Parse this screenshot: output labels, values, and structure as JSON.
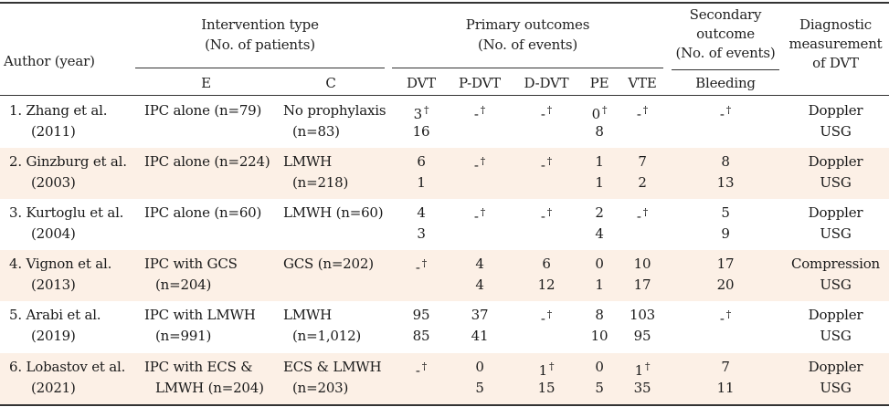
{
  "header": {
    "author": "Author (year)",
    "intervention_l1": "Intervention type",
    "intervention_l2": "(No. of patients)",
    "primary_l1": "Primary outcomes",
    "primary_l2": "(No. of events)",
    "secondary_l1": "Secondary",
    "secondary_l2": "outcome",
    "secondary_l3": "(No. of events)",
    "diag_l1": "Diagnostic",
    "diag_l2": "measurement",
    "diag_l3": "of DVT",
    "col_e": "E",
    "col_c": "C",
    "col_dvt": "DVT",
    "col_pdvt": "P-DVT",
    "col_ddvt": "D-DVT",
    "col_pe": "PE",
    "col_vte": "VTE",
    "col_bleeding": "Bleeding"
  },
  "dagger": "†",
  "rows": [
    {
      "author": [
        "1. Zhang et al.",
        "(2011)"
      ],
      "e": [
        "IPC alone (n=79)",
        ""
      ],
      "c": [
        "No prophylaxis",
        "(n=83)"
      ],
      "dvt": [
        "3",
        "16"
      ],
      "dvt_dag": true,
      "pdvt": [
        "-",
        ""
      ],
      "pdvt_dag": true,
      "ddvt": [
        "-",
        ""
      ],
      "ddvt_dag": true,
      "pe": [
        "0",
        "8"
      ],
      "pe_dag": true,
      "vte": [
        "-",
        ""
      ],
      "vte_dag": true,
      "bleed": [
        "-",
        ""
      ],
      "bleed_dag": true,
      "diag": [
        "Doppler",
        "USG"
      ]
    },
    {
      "author": [
        "2. Ginzburg et al.",
        "(2003)"
      ],
      "e": [
        "IPC alone (n=224)",
        ""
      ],
      "c": [
        "LMWH",
        "(n=218)"
      ],
      "dvt": [
        "6",
        "1"
      ],
      "dvt_dag": false,
      "pdvt": [
        "-",
        ""
      ],
      "pdvt_dag": true,
      "ddvt": [
        "-",
        ""
      ],
      "ddvt_dag": true,
      "pe": [
        "1",
        "1"
      ],
      "pe_dag": false,
      "vte": [
        "7",
        "2"
      ],
      "vte_dag": false,
      "bleed": [
        "8",
        "13"
      ],
      "bleed_dag": false,
      "diag": [
        "Doppler",
        "USG"
      ]
    },
    {
      "author": [
        "3. Kurtoglu et al.",
        "(2004)"
      ],
      "e": [
        "IPC alone (n=60)",
        ""
      ],
      "c": [
        "LMWH (n=60)",
        ""
      ],
      "dvt": [
        "4",
        "3"
      ],
      "dvt_dag": false,
      "pdvt": [
        "-",
        ""
      ],
      "pdvt_dag": true,
      "ddvt": [
        "-",
        ""
      ],
      "ddvt_dag": true,
      "pe": [
        "2",
        "4"
      ],
      "pe_dag": false,
      "vte": [
        "-",
        ""
      ],
      "vte_dag": true,
      "bleed": [
        "5",
        "9"
      ],
      "bleed_dag": false,
      "diag": [
        "Doppler",
        "USG"
      ]
    },
    {
      "author": [
        "4. Vignon et al.",
        "(2013)"
      ],
      "e": [
        "IPC with GCS",
        "(n=204)"
      ],
      "c": [
        "GCS (n=202)",
        ""
      ],
      "dvt": [
        "-",
        ""
      ],
      "dvt_dag": true,
      "pdvt": [
        "4",
        "4"
      ],
      "pdvt_dag": false,
      "ddvt": [
        "6",
        "12"
      ],
      "ddvt_dag": false,
      "pe": [
        "0",
        "1"
      ],
      "pe_dag": false,
      "vte": [
        "10",
        "17"
      ],
      "vte_dag": false,
      "bleed": [
        "17",
        "20"
      ],
      "bleed_dag": false,
      "diag": [
        "Compression",
        "USG"
      ]
    },
    {
      "author": [
        "5. Arabi et al.",
        "(2019)"
      ],
      "e": [
        "IPC with LMWH",
        "(n=991)"
      ],
      "c": [
        "LMWH",
        "(n=1,012)"
      ],
      "dvt": [
        "95",
        "85"
      ],
      "dvt_dag": false,
      "pdvt": [
        "37",
        "41"
      ],
      "pdvt_dag": false,
      "ddvt": [
        "-",
        ""
      ],
      "ddvt_dag": true,
      "pe": [
        "8",
        "10"
      ],
      "pe_dag": false,
      "vte": [
        "103",
        "95"
      ],
      "vte_dag": false,
      "bleed": [
        "-",
        ""
      ],
      "bleed_dag": true,
      "diag": [
        "Doppler",
        "USG"
      ]
    },
    {
      "author": [
        "6. Lobastov et al.",
        "(2021)"
      ],
      "e": [
        "IPC with ECS &",
        "LMWH (n=204)"
      ],
      "c": [
        "ECS & LMWH",
        "(n=203)"
      ],
      "dvt": [
        "-",
        ""
      ],
      "dvt_dag": true,
      "pdvt": [
        "0",
        "5"
      ],
      "pdvt_dag": false,
      "ddvt": [
        "1",
        "15"
      ],
      "ddvt_dag": true,
      "pe": [
        "0",
        "5"
      ],
      "pe_dag": false,
      "vte": [
        "1",
        "35"
      ],
      "vte_dag": true,
      "bleed": [
        "7",
        "11"
      ],
      "bleed_dag": false,
      "diag": [
        "Doppler",
        "USG"
      ]
    }
  ]
}
